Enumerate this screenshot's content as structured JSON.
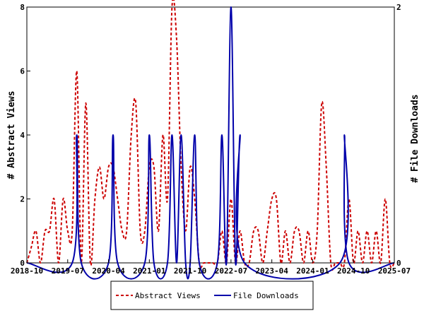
{
  "chart_data": {
    "type": "line",
    "xlabel": "",
    "ylabel": "# Abstract Views",
    "y2label": "# File Downloads",
    "xlim": [
      "2018-10",
      "2025-07"
    ],
    "x_ticks": [
      "2018-10",
      "2019-07",
      "2020-04",
      "2021-01",
      "2021-10",
      "2022-07",
      "2023-04",
      "2024-01",
      "2024-10",
      "2025-07"
    ],
    "ylim": [
      0,
      8
    ],
    "y_ticks": [
      "0",
      "2",
      "4",
      "6",
      "8"
    ],
    "y2lim": [
      0,
      2
    ],
    "y2_ticks": [
      "0",
      "2"
    ],
    "grid": false,
    "legend_position": "bottom-center",
    "series": [
      {
        "name": "Abstract Views",
        "axis": "left",
        "color": "#cc0000",
        "style": "dashed",
        "points": [
          [
            "2018-10",
            0
          ],
          [
            "2018-11",
            0.5
          ],
          [
            "2018-12",
            1
          ],
          [
            "2019-01",
            0
          ],
          [
            "2019-02",
            1
          ],
          [
            "2019-03",
            1
          ],
          [
            "2019-04",
            2
          ],
          [
            "2019-05",
            0
          ],
          [
            "2019-06",
            2
          ],
          [
            "2019-07",
            1
          ],
          [
            "2019-08",
            1
          ],
          [
            "2019-09",
            6
          ],
          [
            "2019-10",
            0
          ],
          [
            "2019-11",
            5
          ],
          [
            "2019-12",
            0
          ],
          [
            "2020-01",
            2
          ],
          [
            "2020-02",
            3
          ],
          [
            "2020-03",
            2
          ],
          [
            "2020-04",
            3
          ],
          [
            "2020-05",
            3
          ],
          [
            "2020-06",
            2
          ],
          [
            "2020-07",
            1
          ],
          [
            "2020-08",
            1
          ],
          [
            "2020-09",
            4
          ],
          [
            "2020-10",
            5
          ],
          [
            "2020-11",
            1
          ],
          [
            "2020-12",
            1
          ],
          [
            "2021-01",
            3
          ],
          [
            "2021-02",
            3
          ],
          [
            "2021-03",
            1
          ],
          [
            "2021-04",
            4
          ],
          [
            "2021-05",
            2
          ],
          [
            "2021-06",
            8
          ],
          [
            "2021-07",
            7
          ],
          [
            "2021-08",
            3
          ],
          [
            "2021-09",
            1
          ],
          [
            "2021-10",
            3
          ],
          [
            "2021-11",
            2
          ],
          [
            "2021-12",
            0
          ],
          [
            "2022-01",
            0
          ],
          [
            "2022-02",
            0
          ],
          [
            "2022-03",
            0
          ],
          [
            "2022-04",
            0
          ],
          [
            "2022-05",
            1
          ],
          [
            "2022-06",
            0
          ],
          [
            "2022-07",
            2
          ],
          [
            "2022-08",
            0
          ],
          [
            "2022-09",
            1
          ],
          [
            "2022-10",
            0
          ],
          [
            "2022-11",
            0
          ],
          [
            "2022-12",
            1
          ],
          [
            "2023-01",
            1
          ],
          [
            "2023-02",
            0
          ],
          [
            "2023-03",
            1
          ],
          [
            "2023-04",
            2
          ],
          [
            "2023-05",
            2
          ],
          [
            "2023-06",
            0
          ],
          [
            "2023-07",
            1
          ],
          [
            "2023-08",
            0
          ],
          [
            "2023-09",
            1
          ],
          [
            "2023-10",
            1
          ],
          [
            "2023-11",
            0
          ],
          [
            "2023-12",
            1
          ],
          [
            "2024-01",
            0
          ],
          [
            "2024-02",
            1
          ],
          [
            "2024-03",
            5
          ],
          [
            "2024-04",
            3
          ],
          [
            "2024-05",
            0
          ],
          [
            "2024-06",
            0
          ],
          [
            "2024-07",
            0
          ],
          [
            "2024-08",
            0
          ],
          [
            "2024-09",
            2
          ],
          [
            "2024-10",
            0
          ],
          [
            "2024-11",
            1
          ],
          [
            "2024-12",
            0
          ],
          [
            "2025-01",
            1
          ],
          [
            "2025-02",
            0
          ],
          [
            "2025-03",
            1
          ],
          [
            "2025-04",
            0
          ],
          [
            "2025-05",
            2
          ],
          [
            "2025-06",
            0
          ],
          [
            "2025-07",
            0
          ]
        ]
      },
      {
        "name": "File Downloads",
        "axis": "right",
        "color": "#0000aa",
        "style": "solid",
        "points": [
          [
            "2018-10",
            0
          ],
          [
            "2019-08",
            0
          ],
          [
            "2019-09",
            1
          ],
          [
            "2019-10",
            0
          ],
          [
            "2020-04",
            0
          ],
          [
            "2020-05",
            1
          ],
          [
            "2020-06",
            0
          ],
          [
            "2020-12",
            0
          ],
          [
            "2021-01",
            1
          ],
          [
            "2021-02",
            0
          ],
          [
            "2021-05",
            0
          ],
          [
            "2021-06",
            1
          ],
          [
            "2021-07",
            0
          ],
          [
            "2021-08",
            1
          ],
          [
            "2021-09",
            0
          ],
          [
            "2021-10",
            0
          ],
          [
            "2021-11",
            1
          ],
          [
            "2021-12",
            0
          ],
          [
            "2022-04",
            0
          ],
          [
            "2022-05",
            1
          ],
          [
            "2022-06",
            0
          ],
          [
            "2022-07",
            2
          ],
          [
            "2022-08",
            0
          ],
          [
            "2022-09",
            1
          ],
          [
            "2022-10",
            0
          ],
          [
            "2024-07",
            0
          ],
          [
            "2024-08",
            1
          ],
          [
            "2024-09",
            0
          ],
          [
            "2025-07",
            0
          ]
        ]
      }
    ]
  }
}
